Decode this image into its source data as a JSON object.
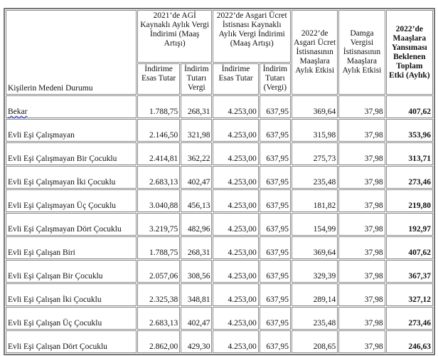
{
  "headers": {
    "label": "Kişilerin Medeni Durumu",
    "agi": "2021’de AGİ Kaynaklı Aylık Vergi İndirimi (Maaş Artışı)",
    "asgari": "2022’de Asgari Ücret İstisnası Kaynaklı Aylık Vergi İndirimi (Maaş Artışı)",
    "sub_esas": "İndirime Esas Tutar",
    "sub_tutar_agi": "İndirim Tutarı Vergi",
    "sub_tutar_asgari": "İndirim Tutarı (Vergi)",
    "etki": "2022’de Asgari Ücret İstisnasının Maaşlara Aylık Etkisi",
    "damga": "Damga Vergisi İstisnasının Maaşlara Aylık Etkisi",
    "toplam": "2022’de Maaşlara Yansıması Beklenen Toplam Etki (Aylık)"
  },
  "rows": [
    [
      "Bekar",
      "1.788,75",
      "268,31",
      "4.253,00",
      "637,95",
      "369,64",
      "37,98",
      "407,62"
    ],
    [
      "Evli Eşi Çalışmayan",
      "2.146,50",
      "321,98",
      "4.253,00",
      "637,95",
      "315,98",
      "37,98",
      "353,96"
    ],
    [
      "Evli Eşi Çalışmayan Bir Çocuklu",
      "2.414,81",
      "362,22",
      "4.253,00",
      "637,95",
      "275,73",
      "37,98",
      "313,71"
    ],
    [
      "Evli Eşi Çalışmayan İki Çocuklu",
      "2.683,13",
      "402,47",
      "4.253,00",
      "637,95",
      "235,48",
      "37,98",
      "273,46"
    ],
    [
      "Evli Eşi Çalışmayan Üç Çocuklu",
      "3.040,88",
      "456,13",
      "4.253,00",
      "637,95",
      "181,82",
      "37,98",
      "219,80"
    ],
    [
      "Evli Eşi Çalışmayan Dört Çocuklu",
      "3.219,75",
      "482,96",
      "4.253,00",
      "637,95",
      "154,99",
      "37,98",
      "192,97"
    ],
    [
      "Evli Eşi Çalışan Biri",
      "1.788,75",
      "268,31",
      "4.253,00",
      "637,95",
      "369,64",
      "37,98",
      "407,62"
    ],
    [
      "Evli Eşi Çalışan Bir Çocuklu",
      "2.057,06",
      "308,56",
      "4.253,00",
      "637,95",
      "329,39",
      "37,98",
      "367,37"
    ],
    [
      "Evli Eşi Çalışan İki Çocuklu",
      "2.325,38",
      "348,81",
      "4.253,00",
      "637,95",
      "289,14",
      "37,98",
      "327,12"
    ],
    [
      "Evli Eşi Çalışan Üç Çocuklu",
      "2.683,13",
      "402,47",
      "4.253,00",
      "637,95",
      "235,48",
      "37,98",
      "273,46"
    ],
    [
      "Evli Eşi Çalışan Dört Çocuklu",
      "2.862,00",
      "429,30",
      "4.253,00",
      "637,95",
      "208,65",
      "37,98",
      "246,63"
    ]
  ]
}
